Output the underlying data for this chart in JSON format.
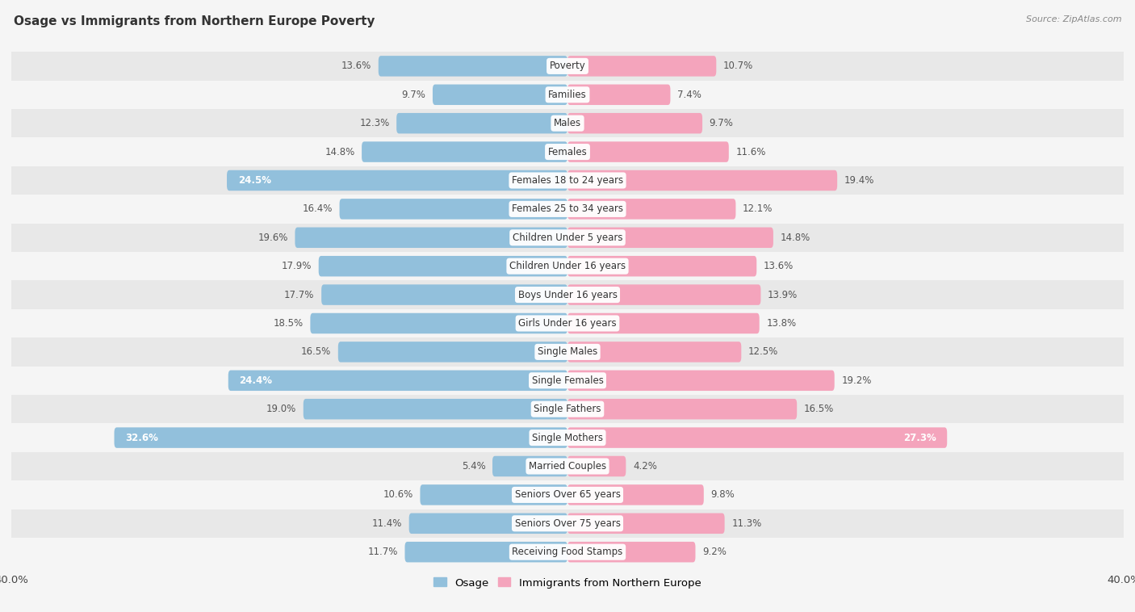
{
  "title": "Osage vs Immigrants from Northern Europe Poverty",
  "source": "Source: ZipAtlas.com",
  "categories": [
    "Poverty",
    "Families",
    "Males",
    "Females",
    "Females 18 to 24 years",
    "Females 25 to 34 years",
    "Children Under 5 years",
    "Children Under 16 years",
    "Boys Under 16 years",
    "Girls Under 16 years",
    "Single Males",
    "Single Females",
    "Single Fathers",
    "Single Mothers",
    "Married Couples",
    "Seniors Over 65 years",
    "Seniors Over 75 years",
    "Receiving Food Stamps"
  ],
  "osage_values": [
    13.6,
    9.7,
    12.3,
    14.8,
    24.5,
    16.4,
    19.6,
    17.9,
    17.7,
    18.5,
    16.5,
    24.4,
    19.0,
    32.6,
    5.4,
    10.6,
    11.4,
    11.7
  ],
  "immigrants_values": [
    10.7,
    7.4,
    9.7,
    11.6,
    19.4,
    12.1,
    14.8,
    13.6,
    13.9,
    13.8,
    12.5,
    19.2,
    16.5,
    27.3,
    4.2,
    9.8,
    11.3,
    9.2
  ],
  "osage_color": "#92C0DC",
  "immigrants_color": "#F4A4BC",
  "row_even_color": "#e8e8e8",
  "row_odd_color": "#f5f5f5",
  "bg_color": "#f5f5f5",
  "xlim": 40.0,
  "legend_labels": [
    "Osage",
    "Immigrants from Northern Europe"
  ],
  "bar_height": 0.72,
  "label_inside_threshold": 20.0,
  "label_fontsize": 8.5,
  "cat_fontsize": 8.5,
  "title_fontsize": 11,
  "source_fontsize": 8
}
